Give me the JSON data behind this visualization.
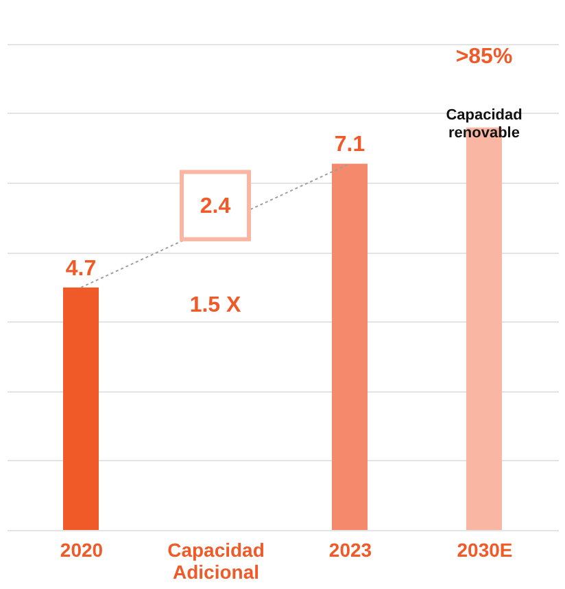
{
  "chart_data": {
    "type": "bar",
    "grid": "y",
    "tick_labels": "x",
    "categories": [
      "2020",
      "Capacidad Adicional",
      "2023",
      "2030E"
    ],
    "series": [
      {
        "colors": [
          "#f05a28",
          "#f05a28",
          "#f4896b",
          "#f9b7a3"
        ],
        "values": [
          4.7,
          null,
          7.1,
          7.8
        ],
        "value_labels": [
          "4.7",
          null,
          "7.1",
          ">85%"
        ]
      },
      {
        "type": "line",
        "line_style": "dotted",
        "marker": "none",
        "color": "#9e9e9e",
        "values": [
          4.7,
          null,
          7.1,
          null
        ]
      }
    ],
    "annotations": [
      "2.4",
      "1.5 X",
      "Capacidad\nrenovable"
    ]
  }
}
